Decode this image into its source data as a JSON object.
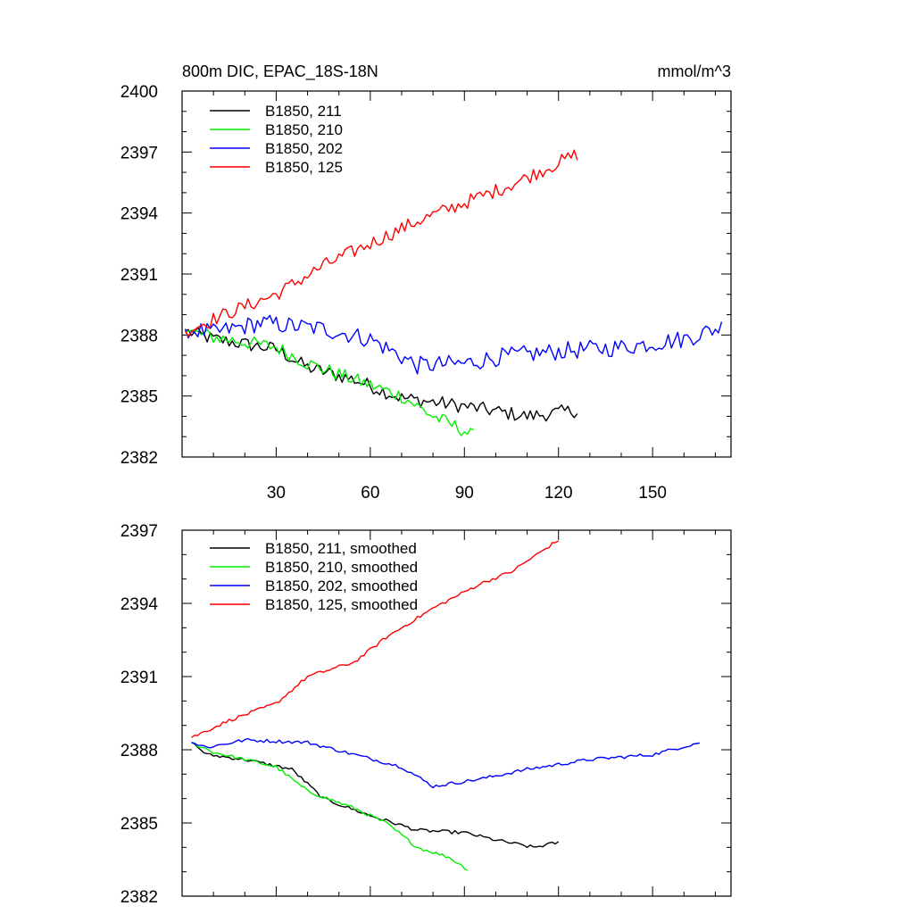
{
  "chart_data": [
    {
      "type": "line",
      "title": "800m DIC, EPAC_18S-18N",
      "units": "mmol/m^3",
      "xlim": [
        0,
        175
      ],
      "ylim": [
        2382,
        2400
      ],
      "xticks": [
        30,
        60,
        90,
        120,
        150
      ],
      "xtick_labels": [
        "30",
        "60",
        "90",
        "120",
        "150"
      ],
      "yticks": [
        2382,
        2385,
        2388,
        2391,
        2394,
        2397,
        2400
      ],
      "ytick_labels": [
        "2382",
        "2385",
        "2388",
        "2391",
        "2394",
        "2397",
        "2400"
      ],
      "legend_position": "top-left",
      "series": [
        {
          "name": "B1850, 211",
          "color": "#000000",
          "noise": 0.35,
          "anchors": [
            [
              1,
              2388.2
            ],
            [
              10,
              2387.8
            ],
            [
              30,
              2387.3
            ],
            [
              40,
              2386.4
            ],
            [
              55,
              2385.8
            ],
            [
              70,
              2384.9
            ],
            [
              90,
              2384.5
            ],
            [
              110,
              2384.0
            ],
            [
              126,
              2384.3
            ]
          ]
        },
        {
          "name": "B1850, 210",
          "color": "#00ee00",
          "noise": 0.35,
          "anchors": [
            [
              1,
              2388.2
            ],
            [
              10,
              2387.9
            ],
            [
              30,
              2387.4
            ],
            [
              40,
              2386.6
            ],
            [
              55,
              2385.8
            ],
            [
              70,
              2385.0
            ],
            [
              80,
              2384.0
            ],
            [
              90,
              2383.3
            ],
            [
              93,
              2383.0
            ]
          ]
        },
        {
          "name": "B1850, 202",
          "color": "#0000ff",
          "noise": 0.45,
          "anchors": [
            [
              1,
              2388.3
            ],
            [
              10,
              2388.1
            ],
            [
              25,
              2388.6
            ],
            [
              45,
              2388.3
            ],
            [
              60,
              2387.8
            ],
            [
              75,
              2386.5
            ],
            [
              90,
              2386.6
            ],
            [
              100,
              2386.9
            ],
            [
              120,
              2387.2
            ],
            [
              140,
              2387.4
            ],
            [
              160,
              2387.8
            ],
            [
              172,
              2388.4
            ]
          ]
        },
        {
          "name": "B1850, 125",
          "color": "#ff0000",
          "noise": 0.35,
          "anchors": [
            [
              1,
              2388.2
            ],
            [
              15,
              2389.1
            ],
            [
              30,
              2390.0
            ],
            [
              45,
              2391.4
            ],
            [
              60,
              2392.5
            ],
            [
              75,
              2393.6
            ],
            [
              90,
              2394.5
            ],
            [
              105,
              2395.4
            ],
            [
              126,
              2396.9
            ]
          ]
        }
      ]
    },
    {
      "type": "line",
      "title": "",
      "xlim": [
        0,
        175
      ],
      "ylim": [
        2382,
        2397
      ],
      "xticks": [
        30,
        60,
        90,
        120,
        150
      ],
      "xtick_labels": [],
      "yticks": [
        2382,
        2385,
        2388,
        2391,
        2394,
        2397
      ],
      "ytick_labels": [
        "2382",
        "2385",
        "2388",
        "2391",
        "2394",
        "2397"
      ],
      "legend_position": "top-left",
      "series": [
        {
          "name": "B1850, 211, smoothed",
          "color": "#000000",
          "noise": 0.07,
          "anchors": [
            [
              3,
              2388.3
            ],
            [
              8,
              2387.8
            ],
            [
              20,
              2387.6
            ],
            [
              35,
              2387.2
            ],
            [
              45,
              2386.0
            ],
            [
              60,
              2385.3
            ],
            [
              75,
              2384.7
            ],
            [
              90,
              2384.6
            ],
            [
              100,
              2384.3
            ],
            [
              112,
              2384.0
            ],
            [
              120,
              2384.2
            ]
          ]
        },
        {
          "name": "B1850, 210, smoothed",
          "color": "#00ee00",
          "noise": 0.07,
          "anchors": [
            [
              3,
              2388.3
            ],
            [
              10,
              2387.9
            ],
            [
              20,
              2387.6
            ],
            [
              30,
              2387.3
            ],
            [
              40,
              2386.3
            ],
            [
              55,
              2385.6
            ],
            [
              65,
              2385.0
            ],
            [
              75,
              2384.0
            ],
            [
              85,
              2383.6
            ],
            [
              91,
              2383.1
            ]
          ]
        },
        {
          "name": "B1850, 202, smoothed",
          "color": "#0000ff",
          "noise": 0.07,
          "anchors": [
            [
              3,
              2388.3
            ],
            [
              8,
              2388.1
            ],
            [
              20,
              2388.4
            ],
            [
              40,
              2388.3
            ],
            [
              55,
              2387.8
            ],
            [
              70,
              2387.3
            ],
            [
              80,
              2386.5
            ],
            [
              95,
              2386.8
            ],
            [
              110,
              2387.2
            ],
            [
              130,
              2387.6
            ],
            [
              150,
              2387.8
            ],
            [
              165,
              2388.3
            ]
          ]
        },
        {
          "name": "B1850, 125, smoothed",
          "color": "#ff0000",
          "noise": 0.07,
          "anchors": [
            [
              3,
              2388.5
            ],
            [
              15,
              2389.2
            ],
            [
              30,
              2389.9
            ],
            [
              40,
              2391.0
            ],
            [
              55,
              2391.6
            ],
            [
              65,
              2392.6
            ],
            [
              80,
              2393.8
            ],
            [
              95,
              2394.8
            ],
            [
              105,
              2395.3
            ],
            [
              120,
              2396.6
            ]
          ]
        }
      ]
    }
  ]
}
